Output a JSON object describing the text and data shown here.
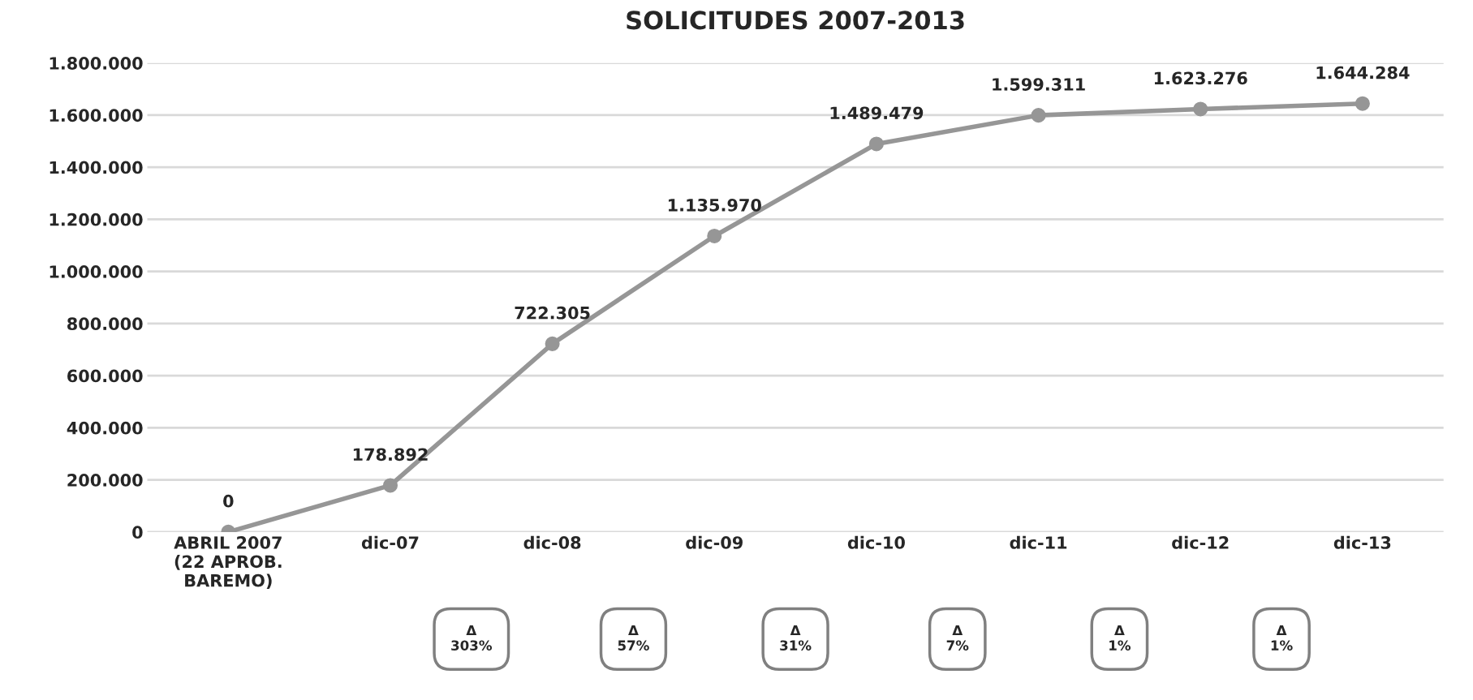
{
  "chart_data": {
    "type": "line",
    "title": "SOLICITUDES 2007-2013",
    "categories": [
      "ABRIL 2007\n(22 APROB.\nBAREMO)",
      "dic-07",
      "dic-08",
      "dic-09",
      "dic-10",
      "dic-11",
      "dic-12",
      "dic-13"
    ],
    "series": [
      {
        "color": "#969696",
        "values": [
          0,
          178892,
          722305,
          1135970,
          1489479,
          1599311,
          1623276,
          1644284
        ],
        "value_labels": [
          "0",
          "178.892",
          "722.305",
          "1.135.970",
          "1.489.479",
          "1.599.311",
          "1.623.276",
          "1.644.284"
        ]
      }
    ],
    "ylim": [
      0,
      1800000
    ],
    "yticks": [
      {
        "value": 0,
        "label": "0"
      },
      {
        "value": 200000,
        "label": "200.000"
      },
      {
        "value": 400000,
        "label": "400.000"
      },
      {
        "value": 600000,
        "label": "600.000"
      },
      {
        "value": 800000,
        "label": "800.000"
      },
      {
        "value": 1000000,
        "label": "1.000.000"
      },
      {
        "value": 1200000,
        "label": "1.200.000"
      },
      {
        "value": 1400000,
        "label": "1.400.000"
      },
      {
        "value": 1600000,
        "label": "1.600.000"
      },
      {
        "value": 1800000,
        "label": "1.800.000"
      }
    ],
    "grid": "y",
    "marker": "circle",
    "line_style": "solid",
    "annotations": [
      "Δ\n303%",
      "Δ\n57%",
      "Δ\n31%",
      "Δ\n7%",
      "Δ\n1%",
      "Δ\n1%"
    ]
  }
}
